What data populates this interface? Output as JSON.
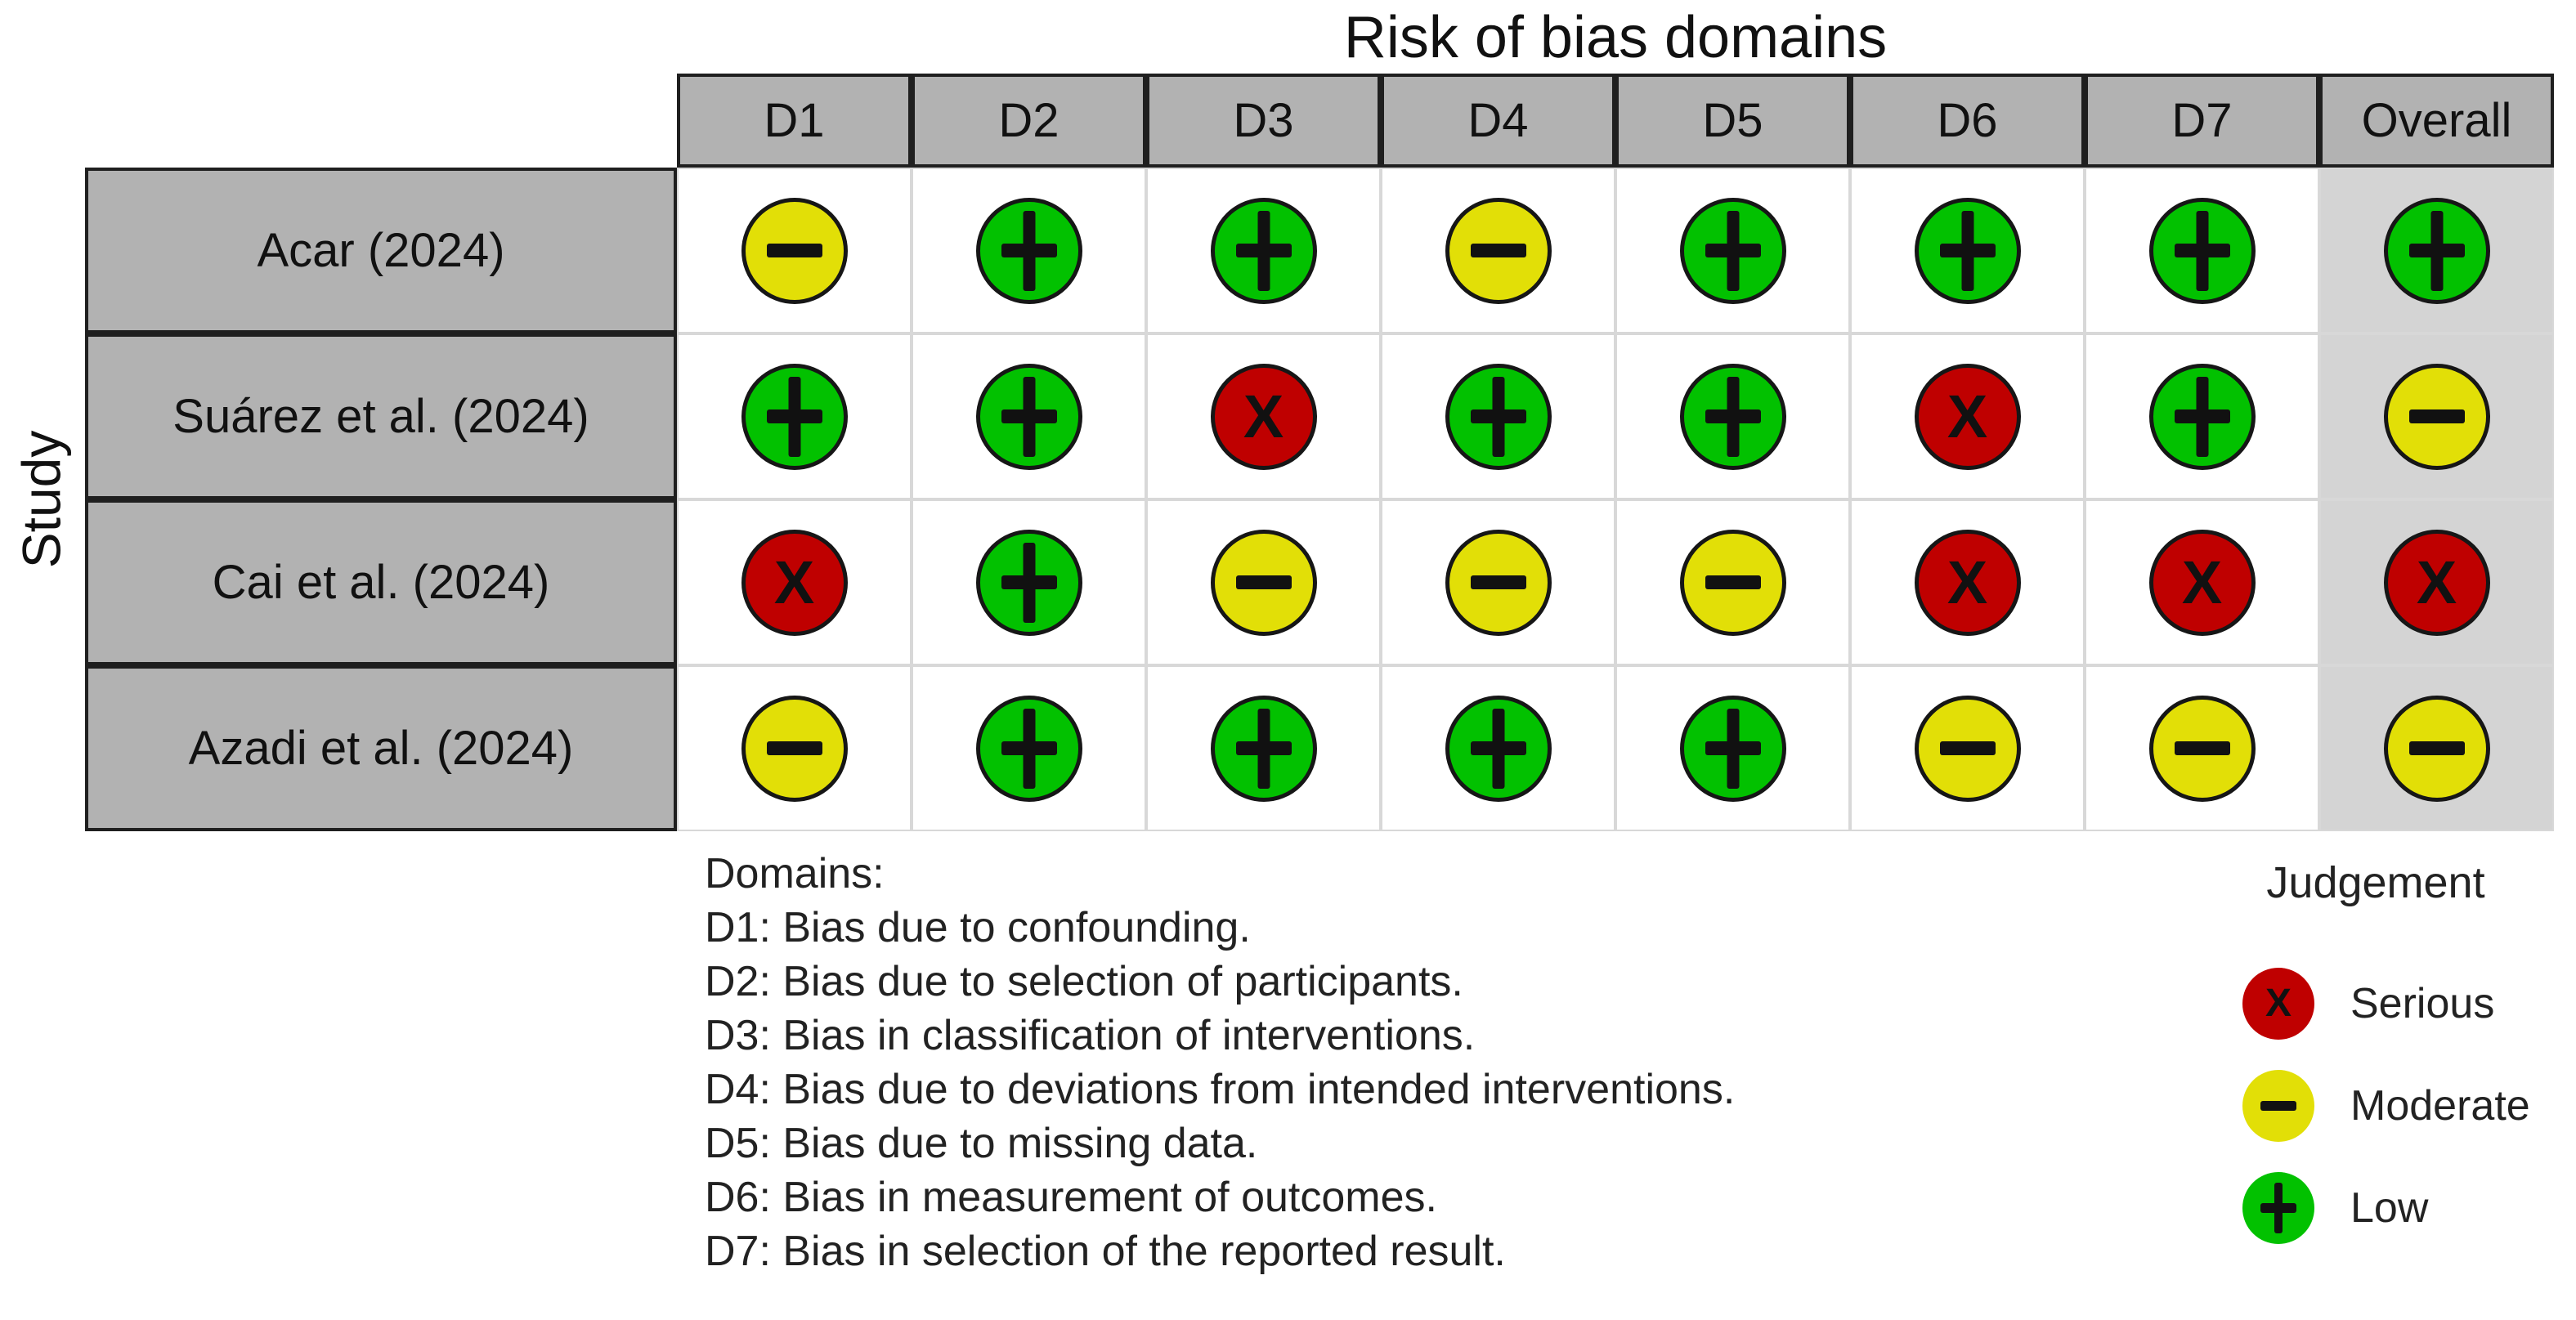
{
  "title": "Risk of bias domains",
  "y_axis_label": "Study",
  "table": {
    "columns": [
      "D1",
      "D2",
      "D3",
      "D4",
      "D5",
      "D6",
      "D7",
      "Overall"
    ],
    "rows": [
      {
        "study": "Acar (2024)",
        "judgements": [
          "moderate",
          "low",
          "low",
          "moderate",
          "low",
          "low",
          "low",
          "low"
        ]
      },
      {
        "study": "Suárez et al. (2024)",
        "judgements": [
          "low",
          "low",
          "serious",
          "low",
          "low",
          "serious",
          "low",
          "moderate"
        ]
      },
      {
        "study": "Cai et al. (2024)",
        "judgements": [
          "serious",
          "low",
          "moderate",
          "moderate",
          "moderate",
          "serious",
          "serious",
          "serious"
        ]
      },
      {
        "study": "Azadi et al. (2024)",
        "judgements": [
          "moderate",
          "low",
          "low",
          "low",
          "low",
          "moderate",
          "moderate",
          "moderate"
        ]
      }
    ]
  },
  "symbols": {
    "serious": "X",
    "moderate": "-",
    "low": "+"
  },
  "colors": {
    "serious": "#bf0000",
    "moderate": "#e2df07",
    "low": "#02c100",
    "header_fill": "#b2b2b2",
    "overall_fill": "#d4d4d4",
    "grid_line": "#d8d8d8",
    "circle_outline": "#161616"
  },
  "footnote": {
    "heading": "Domains:",
    "lines": [
      "D1: Bias due to confounding.",
      "D2: Bias due to selection of participants.",
      "D3: Bias in classification of interventions.",
      "D4: Bias due to deviations from intended interventions.",
      "D5: Bias due to missing data.",
      "D6: Bias in measurement of outcomes.",
      "D7: Bias in selection of the reported result."
    ]
  },
  "legend": {
    "title": "Judgement",
    "entries": [
      {
        "key": "serious",
        "label": "Serious"
      },
      {
        "key": "moderate",
        "label": "Moderate"
      },
      {
        "key": "low",
        "label": "Low"
      }
    ]
  },
  "chart_data": {
    "type": "heatmap",
    "subtype": "risk-of-bias-traffic-light",
    "title": "Risk of bias domains",
    "x": [
      "D1",
      "D2",
      "D3",
      "D4",
      "D5",
      "D6",
      "D7",
      "Overall"
    ],
    "x_axis_title": "Risk of bias domains",
    "y": [
      "Acar (2024)",
      "Suárez et al. (2024)",
      "Cai et al. (2024)",
      "Azadi et al. (2024)"
    ],
    "y_axis_title": "Study",
    "values": [
      [
        "moderate",
        "low",
        "low",
        "moderate",
        "low",
        "low",
        "low",
        "low"
      ],
      [
        "low",
        "low",
        "serious",
        "low",
        "low",
        "serious",
        "low",
        "moderate"
      ],
      [
        "serious",
        "low",
        "moderate",
        "moderate",
        "moderate",
        "serious",
        "serious",
        "serious"
      ],
      [
        "moderate",
        "low",
        "low",
        "low",
        "low",
        "moderate",
        "moderate",
        "moderate"
      ]
    ],
    "value_legend": {
      "low": "+ (green)",
      "moderate": "- (yellow)",
      "serious": "X (red)"
    },
    "legend_position": "bottom-right",
    "grid": true,
    "domain_definitions": [
      "D1: Bias due to confounding.",
      "D2: Bias due to selection of participants.",
      "D3: Bias in classification of interventions.",
      "D4: Bias due to deviations from intended interventions.",
      "D5: Bias due to missing data.",
      "D6: Bias in measurement of outcomes.",
      "D7: Bias in selection of the reported result."
    ]
  }
}
